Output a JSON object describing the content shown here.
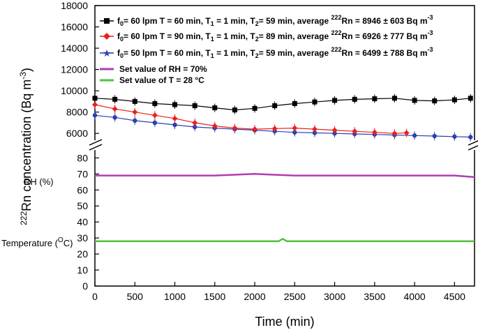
{
  "chart_data": {
    "type": "line",
    "xlabel": "Time (min)",
    "ylabel": {
      "sup": "222",
      "text": "Rn concentration (Bq m",
      "sup2": "-3",
      "close": ")"
    },
    "xlim": [
      0,
      4750
    ],
    "x_ticks": [
      "0",
      "500",
      "1000",
      "1500",
      "2000",
      "2500",
      "3000",
      "3500",
      "4000",
      "4500"
    ],
    "upper_panel": {
      "ylim": [
        4900,
        18000
      ],
      "y_ticks": [
        "6000",
        "8000",
        "10000",
        "12000",
        "14000",
        "16000",
        "18000"
      ]
    },
    "lower_panel": {
      "ylim": [
        0,
        88
      ],
      "y_ticks": [
        "0",
        "10",
        "20",
        "30",
        "40",
        "50",
        "60",
        "70",
        "80"
      ]
    },
    "side_labels": {
      "rh": "RH (%)",
      "temperature": {
        "text": "Temperature (",
        "sup": "O",
        "tail": "C)"
      }
    },
    "series": [
      {
        "name": "f0 = 60 lpm, T = 60 min",
        "color": "#000000",
        "marker": "square",
        "legend": {
          "a": "f",
          "a_sub": "0",
          "b": "= 60 lpm T = 60 min, T",
          "b_sub": "1",
          "c": " = 1 min, T",
          "c_sub": "2",
          "d": "= 59 min, average ",
          "d_sup": "222",
          "e": "Rn = 8946 ± 603 Bq m",
          "e_sup": "-3"
        },
        "x": [
          0,
          250,
          500,
          750,
          1000,
          1250,
          1500,
          1750,
          2000,
          2250,
          2500,
          2750,
          3000,
          3250,
          3500,
          3750,
          4000,
          4250,
          4500,
          4700
        ],
        "values": [
          9300,
          9200,
          9000,
          8800,
          8700,
          8600,
          8400,
          8200,
          8350,
          8600,
          8800,
          8950,
          9100,
          9200,
          9250,
          9300,
          9100,
          9050,
          9150,
          9300
        ]
      },
      {
        "name": "f0 = 60 lpm, T = 90 min",
        "color": "#e8211d",
        "marker": "diamond",
        "legend": {
          "a": "f",
          "a_sub": "0",
          "b": "= 60 lpm T = 90 min, T",
          "b_sub": "1",
          "c": " = 1 min, T",
          "c_sub": "2",
          "d": "= 89 min, average ",
          "d_sup": "222",
          "e": "Rn = 6926 ± 777 Bq m",
          "e_sup": "-3"
        },
        "x": [
          0,
          250,
          500,
          750,
          1000,
          1250,
          1500,
          1750,
          2000,
          2250,
          2500,
          2750,
          3000,
          3250,
          3500,
          3750,
          3900
        ],
        "values": [
          8700,
          8300,
          8000,
          7700,
          7400,
          7000,
          6700,
          6500,
          6400,
          6450,
          6500,
          6400,
          6300,
          6200,
          6100,
          6000,
          6050
        ]
      },
      {
        "name": "f0 = 50 lpm, T = 60 min",
        "color": "#2b3fb0",
        "marker": "star",
        "legend": {
          "a": "f",
          "a_sub": "0",
          "b": "= 50 lpm T = 60 min, T",
          "b_sub": "1",
          "c": " = 1 min, T",
          "c_sub": "2",
          "d": "= 59 min, average ",
          "d_sup": "222",
          "e": "Rn = 6499 ± 788 Bq m",
          "e_sup": "-3"
        },
        "x": [
          0,
          250,
          500,
          750,
          1000,
          1250,
          1500,
          1750,
          2000,
          2250,
          2500,
          2750,
          3000,
          3250,
          3500,
          3750,
          4000,
          4250,
          4500,
          4700
        ],
        "values": [
          7700,
          7500,
          7200,
          7000,
          6800,
          6600,
          6500,
          6400,
          6300,
          6200,
          6100,
          6050,
          6000,
          5950,
          5900,
          5850,
          5800,
          5750,
          5700,
          5650
        ]
      },
      {
        "name": "Set value of RH = 70%",
        "color": "#b13cb5",
        "legend_text": "Set value of RH = 70%",
        "x": [
          0,
          500,
          1000,
          1500,
          2000,
          2500,
          3000,
          3500,
          4000,
          4500,
          4750
        ],
        "values": [
          69,
          69,
          69,
          69,
          70,
          69,
          69,
          69,
          69,
          69,
          68
        ]
      },
      {
        "name": "Set value of T = 28 °C",
        "color": "#4fc23a",
        "legend_text": "Set value of T = 28 °C",
        "x": [
          0,
          500,
          1000,
          1500,
          2000,
          2300,
          2350,
          2400,
          2500,
          3000,
          3500,
          4000,
          4500,
          4750
        ],
        "values": [
          28,
          28,
          28,
          28,
          28,
          28,
          29.5,
          28,
          28,
          28,
          28,
          28,
          28,
          28
        ]
      }
    ]
  }
}
